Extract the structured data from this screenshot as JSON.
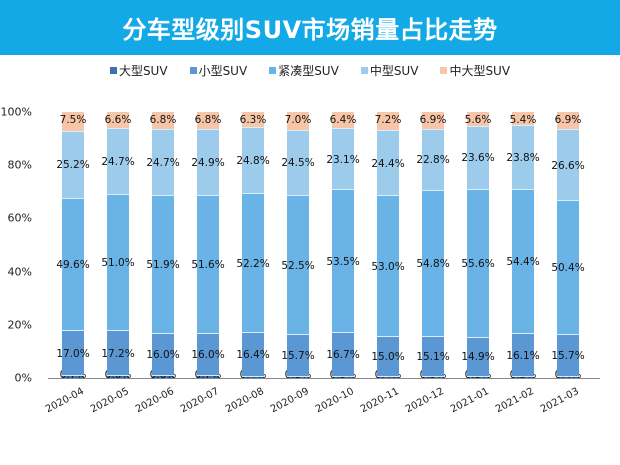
{
  "title": "分车型级别SUV市场销量占比走势",
  "legend": [
    {
      "label": "大型SUV",
      "color": "#3e6fae"
    },
    {
      "label": "小型SUV",
      "color": "#5b97d3"
    },
    {
      "label": "紧凑型SUV",
      "color": "#6ab3e6"
    },
    {
      "label": "中型SUV",
      "color": "#9ccbeb"
    },
    {
      "label": "中大型SUV",
      "color": "#f7c6a8"
    }
  ],
  "yaxis": [
    "0%",
    "20%",
    "40%",
    "60%",
    "80%",
    "100%"
  ],
  "chart_data": {
    "type": "bar",
    "stacked": true,
    "title": "分车型级别SUV市场销量占比走势",
    "xlabel": "",
    "ylabel": "",
    "ylim": [
      0,
      100
    ],
    "legend_position": "top",
    "grid": false,
    "categories": [
      "2020-04",
      "2020-05",
      "2020-06",
      "2020-07",
      "2020-08",
      "2020-09",
      "2020-10",
      "2020-11",
      "2020-12",
      "2021-01",
      "2021-02",
      "2021-03"
    ],
    "series": [
      {
        "name": "大型SUV",
        "color": "#3e6fae",
        "values": [
          0.7,
          0.6,
          0.6,
          0.7,
          0.4,
          0.3,
          0.3,
          0.4,
          0.5,
          0.3,
          0.3,
          0.4
        ]
      },
      {
        "name": "小型SUV",
        "color": "#5b97d3",
        "values": [
          17.0,
          17.2,
          16.0,
          16.0,
          16.4,
          15.7,
          16.7,
          15.0,
          15.1,
          14.9,
          16.1,
          15.7
        ]
      },
      {
        "name": "紧凑型SUV",
        "color": "#6ab3e6",
        "values": [
          49.6,
          51.0,
          51.9,
          51.6,
          52.2,
          52.5,
          53.5,
          53.0,
          54.8,
          55.6,
          54.4,
          50.4
        ]
      },
      {
        "name": "中型SUV",
        "color": "#9ccbeb",
        "values": [
          25.2,
          24.7,
          24.7,
          24.9,
          24.8,
          24.5,
          23.1,
          24.4,
          22.8,
          23.6,
          23.8,
          26.6
        ]
      },
      {
        "name": "中大型SUV",
        "color": "#f7c6a8",
        "values": [
          7.5,
          6.6,
          6.8,
          6.8,
          6.3,
          7.0,
          6.4,
          7.2,
          6.9,
          5.6,
          5.4,
          6.9
        ]
      }
    ]
  }
}
